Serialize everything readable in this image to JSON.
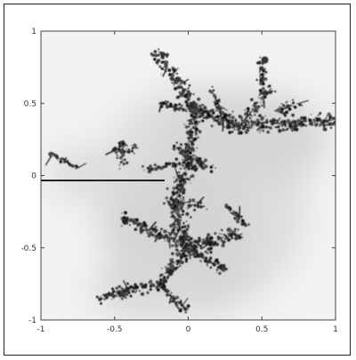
{
  "chart_data": {
    "type": "heatmap",
    "title": "",
    "xlabel": "",
    "ylabel": "",
    "xlim": [
      -1,
      1
    ],
    "ylim": [
      -1,
      1
    ],
    "x_ticks": [
      -1,
      -0.5,
      0,
      0.5,
      1
    ],
    "y_ticks": [
      -1,
      -0.5,
      0,
      0.5,
      1
    ],
    "x_tick_labels": [
      "-1",
      "-0.5",
      "0",
      "0.5",
      "1"
    ],
    "y_tick_labels": [
      "-1",
      "-0.5",
      "0",
      "0.5",
      "1"
    ],
    "grid": false,
    "colormap": "grayscale",
    "colors": {
      "background": "#f2f2f2",
      "mid_gray": "#dcdcdc",
      "structure": "#111111",
      "frame": "#222222"
    }
  }
}
